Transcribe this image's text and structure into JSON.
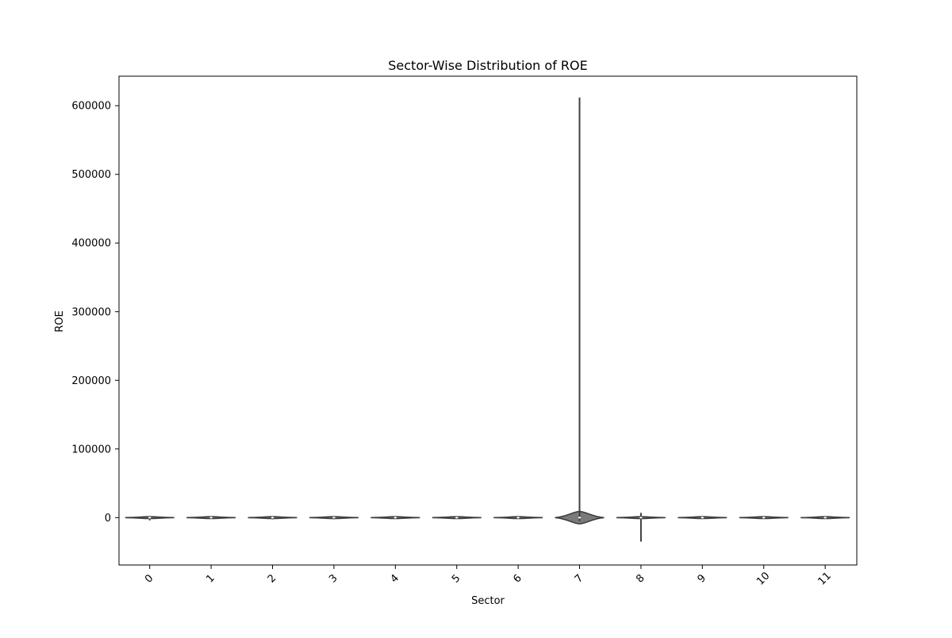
{
  "chart_data": {
    "type": "violin",
    "title": "Sector-Wise Distribution of ROE",
    "xlabel": "Sector",
    "ylabel": "ROE",
    "categories": [
      "0",
      "1",
      "2",
      "3",
      "4",
      "5",
      "6",
      "7",
      "8",
      "9",
      "10",
      "11"
    ],
    "ylim": [
      -69000,
      643000
    ],
    "yticks": [
      0,
      100000,
      200000,
      300000,
      400000,
      500000,
      600000
    ],
    "ytick_labels": [
      "0",
      "100000",
      "200000",
      "300000",
      "400000",
      "500000",
      "600000"
    ],
    "xtick_rotation_deg": -45,
    "grid": false,
    "legend": "none",
    "violin_color": "#7a7a7a",
    "edge_color": "#3f3f3f",
    "violins": [
      {
        "category": "0",
        "min": -4000,
        "max": 1000,
        "median": 0,
        "body_half_height": 1000
      },
      {
        "category": "1",
        "min": -500,
        "max": 500,
        "median": 0,
        "body_half_height": 1000
      },
      {
        "category": "2",
        "min": -2500,
        "max": 800,
        "median": 0,
        "body_half_height": 1000
      },
      {
        "category": "3",
        "min": -2500,
        "max": 800,
        "median": 0,
        "body_half_height": 1000
      },
      {
        "category": "4",
        "min": -500,
        "max": 500,
        "median": 0,
        "body_half_height": 1000
      },
      {
        "category": "5",
        "min": -500,
        "max": 800,
        "median": 0,
        "body_half_height": 1000
      },
      {
        "category": "6",
        "min": -500,
        "max": 800,
        "median": 0,
        "body_half_height": 1000
      },
      {
        "category": "7",
        "min": -5000,
        "max": 612000,
        "median": 0,
        "body_half_height": 9000
      },
      {
        "category": "8",
        "min": -35000,
        "max": 7000,
        "median": 0,
        "body_half_height": 1000
      },
      {
        "category": "9",
        "min": -500,
        "max": 2000,
        "median": 0,
        "body_half_height": 1000
      },
      {
        "category": "10",
        "min": -500,
        "max": 500,
        "median": 0,
        "body_half_height": 1000
      },
      {
        "category": "11",
        "min": -500,
        "max": 500,
        "median": 0,
        "body_half_height": 1000
      }
    ]
  }
}
